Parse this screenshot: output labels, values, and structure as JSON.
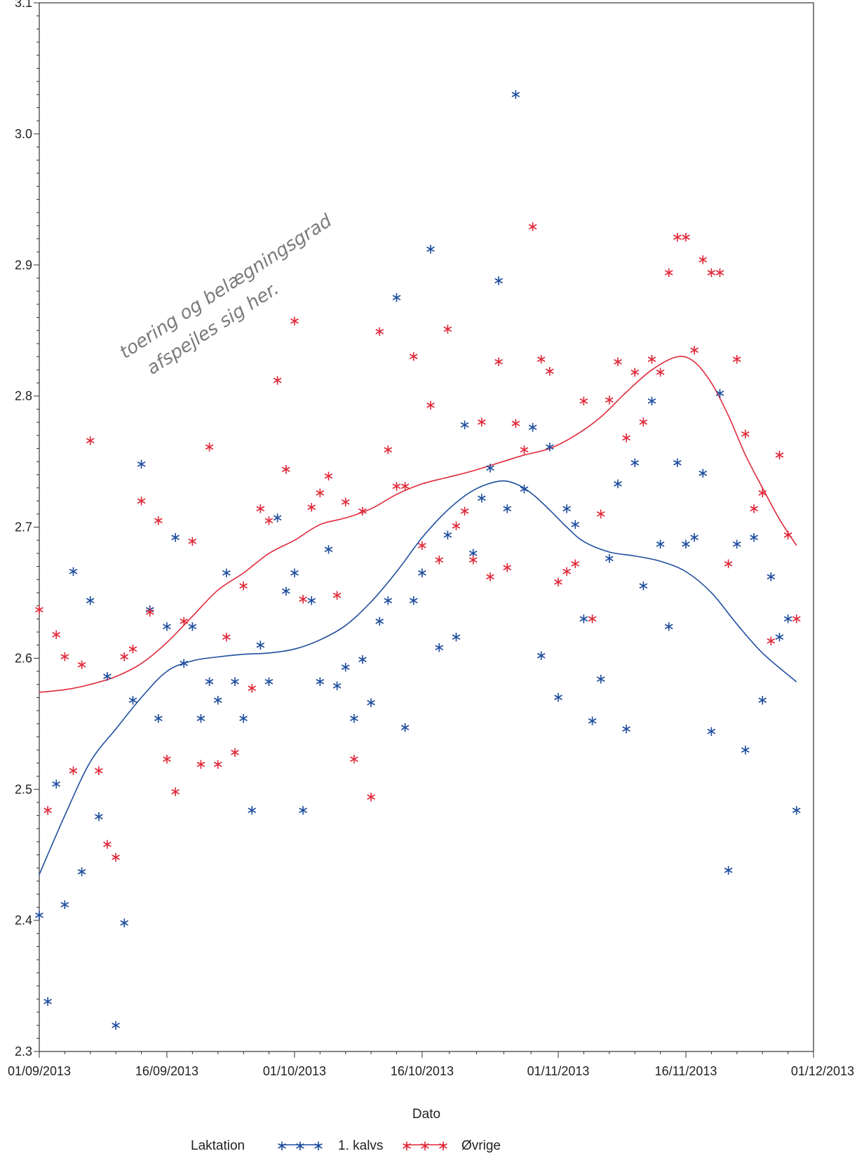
{
  "chart_data": {
    "type": "scatter",
    "title": "",
    "xlabel": "Dato",
    "ylabel": "",
    "x_ticks": [
      "01/09/2013",
      "16/09/2013",
      "01/10/2013",
      "16/10/2013",
      "01/11/2013",
      "16/11/2013",
      "01/12/2013"
    ],
    "y_ticks": [
      "2.3",
      "2.4",
      "2.5",
      "2.6",
      "2.7",
      "2.8",
      "2.9",
      "3.0",
      "3.1"
    ],
    "xlim": [
      "2013-09-01",
      "2013-12-01"
    ],
    "ylim": [
      2.3,
      3.1
    ],
    "grid": false,
    "legend_position": "bottom",
    "legend_title": "Laktation",
    "annotation": {
      "line1": "toering og belægningsgrad",
      "line2": "afspejles sig her."
    },
    "series": [
      {
        "name": "1. kalvs",
        "color": "#1f4e9e",
        "points": [
          [
            "2013-09-01",
            2.405
          ],
          [
            "2013-09-02",
            2.339
          ],
          [
            "2013-09-03",
            2.505
          ],
          [
            "2013-09-04",
            2.413
          ],
          [
            "2013-09-05",
            2.667
          ],
          [
            "2013-09-06",
            2.438
          ],
          [
            "2013-09-07",
            2.645
          ],
          [
            "2013-09-08",
            2.48
          ],
          [
            "2013-09-09",
            2.587
          ],
          [
            "2013-09-10",
            2.321
          ],
          [
            "2013-09-11",
            2.399
          ],
          [
            "2013-09-12",
            2.569
          ],
          [
            "2013-09-13",
            2.749
          ],
          [
            "2013-09-14",
            2.638
          ],
          [
            "2013-09-15",
            2.555
          ],
          [
            "2013-09-16",
            2.625
          ],
          [
            "2013-09-17",
            2.693
          ],
          [
            "2013-09-18",
            2.597
          ],
          [
            "2013-09-19",
            2.625
          ],
          [
            "2013-09-20",
            2.555
          ],
          [
            "2013-09-21",
            2.583
          ],
          [
            "2013-09-22",
            2.569
          ],
          [
            "2013-09-23",
            2.666
          ],
          [
            "2013-09-24",
            2.583
          ],
          [
            "2013-09-25",
            2.555
          ],
          [
            "2013-09-26",
            2.485
          ],
          [
            "2013-09-27",
            2.611
          ],
          [
            "2013-09-28",
            2.583
          ],
          [
            "2013-09-29",
            2.708
          ],
          [
            "2013-09-30",
            2.652
          ],
          [
            "2013-10-01",
            2.666
          ],
          [
            "2013-10-02",
            2.485
          ],
          [
            "2013-10-03",
            2.645
          ],
          [
            "2013-10-04",
            2.583
          ],
          [
            "2013-10-05",
            2.684
          ],
          [
            "2013-10-06",
            2.58
          ],
          [
            "2013-10-07",
            2.594
          ],
          [
            "2013-10-08",
            2.555
          ],
          [
            "2013-10-09",
            2.6
          ],
          [
            "2013-10-10",
            2.567
          ],
          [
            "2013-10-11",
            2.629
          ],
          [
            "2013-10-12",
            2.645
          ],
          [
            "2013-10-13",
            2.876
          ],
          [
            "2013-10-14",
            2.548
          ],
          [
            "2013-10-15",
            2.645
          ],
          [
            "2013-10-16",
            2.666
          ],
          [
            "2013-10-17",
            2.913
          ],
          [
            "2013-10-18",
            2.609
          ],
          [
            "2013-10-19",
            2.695
          ],
          [
            "2013-10-20",
            2.617
          ],
          [
            "2013-10-21",
            2.779
          ],
          [
            "2013-10-22",
            2.681
          ],
          [
            "2013-10-23",
            2.723
          ],
          [
            "2013-10-24",
            2.746
          ],
          [
            "2013-10-25",
            2.889
          ],
          [
            "2013-10-26",
            2.715
          ],
          [
            "2013-10-27",
            3.031
          ],
          [
            "2013-10-28",
            2.73
          ],
          [
            "2013-10-29",
            2.777
          ],
          [
            "2013-10-30",
            2.603
          ],
          [
            "2013-10-31",
            2.762
          ],
          [
            "2013-11-01",
            2.571
          ],
          [
            "2013-11-02",
            2.715
          ],
          [
            "2013-11-03",
            2.703
          ],
          [
            "2013-11-04",
            2.631
          ],
          [
            "2013-11-05",
            2.553
          ],
          [
            "2013-11-06",
            2.585
          ],
          [
            "2013-11-07",
            2.677
          ],
          [
            "2013-11-08",
            2.734
          ],
          [
            "2013-11-09",
            2.547
          ],
          [
            "2013-11-10",
            2.75
          ],
          [
            "2013-11-11",
            2.656
          ],
          [
            "2013-11-12",
            2.797
          ],
          [
            "2013-11-13",
            2.688
          ],
          [
            "2013-11-14",
            2.625
          ],
          [
            "2013-11-15",
            2.75
          ],
          [
            "2013-11-16",
            2.688
          ],
          [
            "2013-11-17",
            2.693
          ],
          [
            "2013-11-18",
            2.742
          ],
          [
            "2013-11-19",
            2.545
          ],
          [
            "2013-11-20",
            2.803
          ],
          [
            "2013-11-21",
            2.439
          ],
          [
            "2013-11-22",
            2.688
          ],
          [
            "2013-11-23",
            2.531
          ],
          [
            "2013-11-24",
            2.693
          ],
          [
            "2013-11-25",
            2.569
          ],
          [
            "2013-11-26",
            2.663
          ],
          [
            "2013-11-27",
            2.617
          ],
          [
            "2013-11-28",
            2.631
          ],
          [
            "2013-11-29",
            2.485
          ]
        ],
        "smooth": [
          [
            "2013-09-01",
            2.435
          ],
          [
            "2013-09-04",
            2.48
          ],
          [
            "2013-09-07",
            2.521
          ],
          [
            "2013-09-10",
            2.546
          ],
          [
            "2013-09-13",
            2.57
          ],
          [
            "2013-09-16",
            2.59
          ],
          [
            "2013-09-19",
            2.598
          ],
          [
            "2013-09-22",
            2.601
          ],
          [
            "2013-09-25",
            2.603
          ],
          [
            "2013-09-28",
            2.604
          ],
          [
            "2013-10-01",
            2.607
          ],
          [
            "2013-10-04",
            2.614
          ],
          [
            "2013-10-07",
            2.625
          ],
          [
            "2013-10-10",
            2.643
          ],
          [
            "2013-10-13",
            2.666
          ],
          [
            "2013-10-16",
            2.692
          ],
          [
            "2013-10-19",
            2.713
          ],
          [
            "2013-10-22",
            2.728
          ],
          [
            "2013-10-25",
            2.735
          ],
          [
            "2013-10-27",
            2.733
          ],
          [
            "2013-10-29",
            2.725
          ],
          [
            "2013-10-31",
            2.713
          ],
          [
            "2013-11-02",
            2.7
          ],
          [
            "2013-11-04",
            2.689
          ],
          [
            "2013-11-07",
            2.681
          ],
          [
            "2013-11-10",
            2.678
          ],
          [
            "2013-11-13",
            2.674
          ],
          [
            "2013-11-16",
            2.666
          ],
          [
            "2013-11-19",
            2.65
          ],
          [
            "2013-11-22",
            2.626
          ],
          [
            "2013-11-25",
            2.604
          ],
          [
            "2013-11-29",
            2.582
          ]
        ]
      },
      {
        "name": "Øvrige",
        "color": "#e0293a",
        "points": [
          [
            "2013-09-01",
            2.638
          ],
          [
            "2013-09-02",
            2.485
          ],
          [
            "2013-09-03",
            2.619
          ],
          [
            "2013-09-04",
            2.602
          ],
          [
            "2013-09-05",
            2.515
          ],
          [
            "2013-09-06",
            2.596
          ],
          [
            "2013-09-07",
            2.767
          ],
          [
            "2013-09-08",
            2.515
          ],
          [
            "2013-09-09",
            2.459
          ],
          [
            "2013-09-10",
            2.449
          ],
          [
            "2013-09-11",
            2.602
          ],
          [
            "2013-09-12",
            2.608
          ],
          [
            "2013-09-13",
            2.721
          ],
          [
            "2013-09-14",
            2.636
          ],
          [
            "2013-09-15",
            2.706
          ],
          [
            "2013-09-16",
            2.524
          ],
          [
            "2013-09-17",
            2.499
          ],
          [
            "2013-09-18",
            2.629
          ],
          [
            "2013-09-19",
            2.69
          ],
          [
            "2013-09-20",
            2.52
          ],
          [
            "2013-09-21",
            2.762
          ],
          [
            "2013-09-22",
            2.52
          ],
          [
            "2013-09-23",
            2.617
          ],
          [
            "2013-09-24",
            2.529
          ],
          [
            "2013-09-25",
            2.656
          ],
          [
            "2013-09-26",
            2.578
          ],
          [
            "2013-09-27",
            2.715
          ],
          [
            "2013-09-28",
            2.706
          ],
          [
            "2013-09-29",
            2.813
          ],
          [
            "2013-09-30",
            2.745
          ],
          [
            "2013-10-01",
            2.858
          ],
          [
            "2013-10-02",
            2.646
          ],
          [
            "2013-10-03",
            2.716
          ],
          [
            "2013-10-04",
            2.727
          ],
          [
            "2013-10-05",
            2.74
          ],
          [
            "2013-10-06",
            2.649
          ],
          [
            "2013-10-07",
            2.72
          ],
          [
            "2013-10-08",
            2.524
          ],
          [
            "2013-10-09",
            2.713
          ],
          [
            "2013-10-10",
            2.495
          ],
          [
            "2013-10-11",
            2.85
          ],
          [
            "2013-10-12",
            2.76
          ],
          [
            "2013-10-13",
            2.732
          ],
          [
            "2013-10-14",
            2.732
          ],
          [
            "2013-10-15",
            2.831
          ],
          [
            "2013-10-16",
            2.687
          ],
          [
            "2013-10-17",
            2.794
          ],
          [
            "2013-10-18",
            2.676
          ],
          [
            "2013-10-19",
            2.852
          ],
          [
            "2013-10-20",
            2.702
          ],
          [
            "2013-10-21",
            2.713
          ],
          [
            "2013-10-22",
            2.676
          ],
          [
            "2013-10-23",
            2.781
          ],
          [
            "2013-10-24",
            2.663
          ],
          [
            "2013-10-25",
            2.827
          ],
          [
            "2013-10-26",
            2.67
          ],
          [
            "2013-10-27",
            2.78
          ],
          [
            "2013-10-28",
            2.76
          ],
          [
            "2013-10-29",
            2.93
          ],
          [
            "2013-10-30",
            2.829
          ],
          [
            "2013-10-31",
            2.82
          ],
          [
            "2013-11-01",
            2.659
          ],
          [
            "2013-11-02",
            2.667
          ],
          [
            "2013-11-03",
            2.673
          ],
          [
            "2013-11-04",
            2.797
          ],
          [
            "2013-11-05",
            2.631
          ],
          [
            "2013-11-06",
            2.711
          ],
          [
            "2013-11-07",
            2.798
          ],
          [
            "2013-11-08",
            2.827
          ],
          [
            "2013-11-09",
            2.769
          ],
          [
            "2013-11-10",
            2.819
          ],
          [
            "2013-11-11",
            2.781
          ],
          [
            "2013-11-12",
            2.829
          ],
          [
            "2013-11-13",
            2.819
          ],
          [
            "2013-11-14",
            2.895
          ],
          [
            "2013-11-15",
            2.922
          ],
          [
            "2013-11-16",
            2.922
          ],
          [
            "2013-11-17",
            2.836
          ],
          [
            "2013-11-18",
            2.905
          ],
          [
            "2013-11-19",
            2.895
          ],
          [
            "2013-11-20",
            2.895
          ],
          [
            "2013-11-21",
            2.673
          ],
          [
            "2013-11-22",
            2.829
          ],
          [
            "2013-11-23",
            2.772
          ],
          [
            "2013-11-24",
            2.715
          ],
          [
            "2013-11-25",
            2.727
          ],
          [
            "2013-11-26",
            2.614
          ],
          [
            "2013-11-27",
            2.756
          ],
          [
            "2013-11-28",
            2.695
          ],
          [
            "2013-11-29",
            2.631
          ]
        ],
        "smooth": [
          [
            "2013-09-01",
            2.574
          ],
          [
            "2013-09-04",
            2.576
          ],
          [
            "2013-09-07",
            2.58
          ],
          [
            "2013-09-10",
            2.586
          ],
          [
            "2013-09-13",
            2.596
          ],
          [
            "2013-09-16",
            2.612
          ],
          [
            "2013-09-19",
            2.632
          ],
          [
            "2013-09-22",
            2.652
          ],
          [
            "2013-09-25",
            2.665
          ],
          [
            "2013-09-28",
            2.68
          ],
          [
            "2013-10-01",
            2.69
          ],
          [
            "2013-10-04",
            2.702
          ],
          [
            "2013-10-07",
            2.707
          ],
          [
            "2013-10-10",
            2.714
          ],
          [
            "2013-10-13",
            2.725
          ],
          [
            "2013-10-16",
            2.733
          ],
          [
            "2013-10-19",
            2.738
          ],
          [
            "2013-10-22",
            2.743
          ],
          [
            "2013-10-25",
            2.749
          ],
          [
            "2013-10-28",
            2.755
          ],
          [
            "2013-10-31",
            2.76
          ],
          [
            "2013-11-03",
            2.77
          ],
          [
            "2013-11-06",
            2.784
          ],
          [
            "2013-11-09",
            2.803
          ],
          [
            "2013-11-12",
            2.82
          ],
          [
            "2013-11-15",
            2.83
          ],
          [
            "2013-11-17",
            2.826
          ],
          [
            "2013-11-19",
            2.81
          ],
          [
            "2013-11-21",
            2.785
          ],
          [
            "2013-11-23",
            2.755
          ],
          [
            "2013-11-25",
            2.73
          ],
          [
            "2013-11-27",
            2.706
          ],
          [
            "2013-11-29",
            2.686
          ]
        ]
      }
    ]
  }
}
